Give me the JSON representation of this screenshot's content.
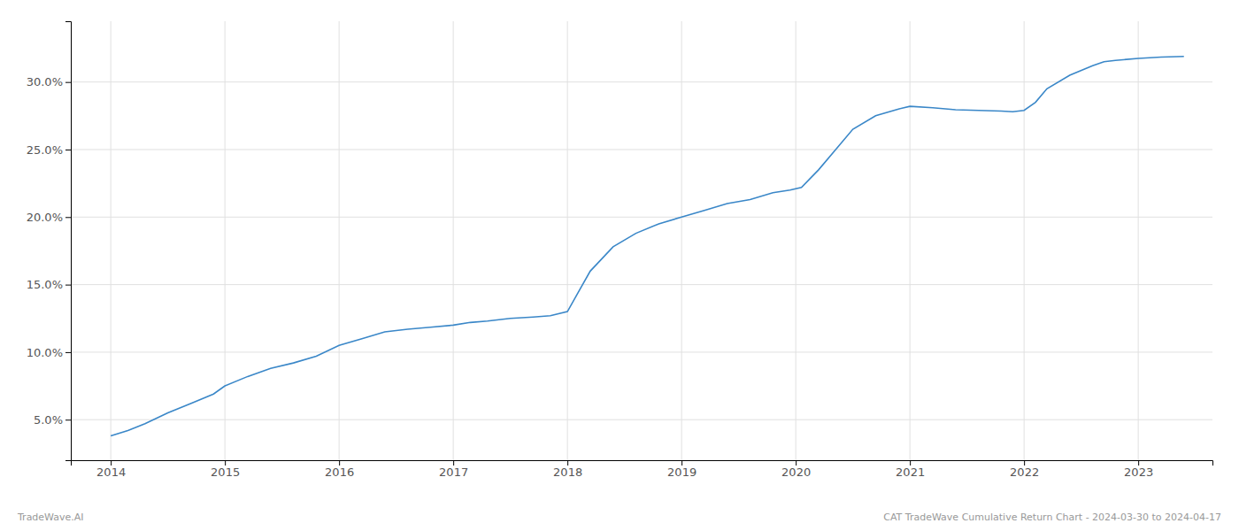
{
  "chart_data": {
    "type": "line",
    "x": [
      2014.0,
      2014.15,
      2014.3,
      2014.5,
      2014.7,
      2014.9,
      2015.0,
      2015.2,
      2015.4,
      2015.6,
      2015.8,
      2016.0,
      2016.2,
      2016.4,
      2016.6,
      2016.8,
      2017.0,
      2017.15,
      2017.3,
      2017.5,
      2017.7,
      2017.85,
      2018.0,
      2018.1,
      2018.2,
      2018.4,
      2018.6,
      2018.8,
      2019.0,
      2019.2,
      2019.4,
      2019.6,
      2019.8,
      2019.95,
      2020.05,
      2020.2,
      2020.35,
      2020.5,
      2020.7,
      2020.9,
      2021.0,
      2021.2,
      2021.4,
      2021.6,
      2021.8,
      2021.9,
      2022.0,
      2022.1,
      2022.2,
      2022.4,
      2022.6,
      2022.7,
      2022.8,
      2023.0,
      2023.2,
      2023.4
    ],
    "values": [
      3.8,
      4.2,
      4.7,
      5.5,
      6.2,
      6.9,
      7.5,
      8.2,
      8.8,
      9.2,
      9.7,
      10.5,
      11.0,
      11.5,
      11.7,
      11.85,
      12.0,
      12.2,
      12.3,
      12.5,
      12.6,
      12.7,
      13.0,
      14.5,
      16.0,
      17.8,
      18.8,
      19.5,
      20.0,
      20.5,
      21.0,
      21.3,
      21.8,
      22.0,
      22.2,
      23.5,
      25.0,
      26.5,
      27.5,
      28.0,
      28.2,
      28.1,
      27.95,
      27.9,
      27.85,
      27.8,
      27.9,
      28.5,
      29.5,
      30.5,
      31.2,
      31.5,
      31.6,
      31.75,
      31.85,
      31.9
    ],
    "color": "#3a87c8",
    "xlim": [
      2013.65,
      2023.65
    ],
    "ylim": [
      2.0,
      34.5
    ],
    "xticks": [
      2014,
      2015,
      2016,
      2017,
      2018,
      2019,
      2020,
      2021,
      2022,
      2023
    ],
    "yticks": [
      {
        "value": 5.0,
        "label": "5.0%"
      },
      {
        "value": 10.0,
        "label": "10.0%"
      },
      {
        "value": 15.0,
        "label": "15.0%"
      },
      {
        "value": 20.0,
        "label": "20.0%"
      },
      {
        "value": 25.0,
        "label": "25.0%"
      },
      {
        "value": 30.0,
        "label": "30.0%"
      }
    ],
    "grid": true,
    "annotations": [
      "TradeWave.AI",
      "CAT TradeWave Cumulative Return Chart - 2024-03-30 to 2024-04-17"
    ]
  }
}
